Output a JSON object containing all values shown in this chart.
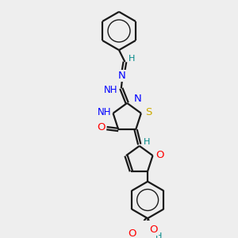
{
  "background_color": "#eeeeee",
  "bond_color": "#1a1a1a",
  "atom_colors": {
    "N": "#0000ff",
    "O": "#ff0000",
    "S": "#ccaa00",
    "H": "#008888",
    "C": "#1a1a1a"
  },
  "fig_size": [
    3.0,
    3.0
  ],
  "dpi": 100,
  "lw": 1.6,
  "fs": 8.5
}
